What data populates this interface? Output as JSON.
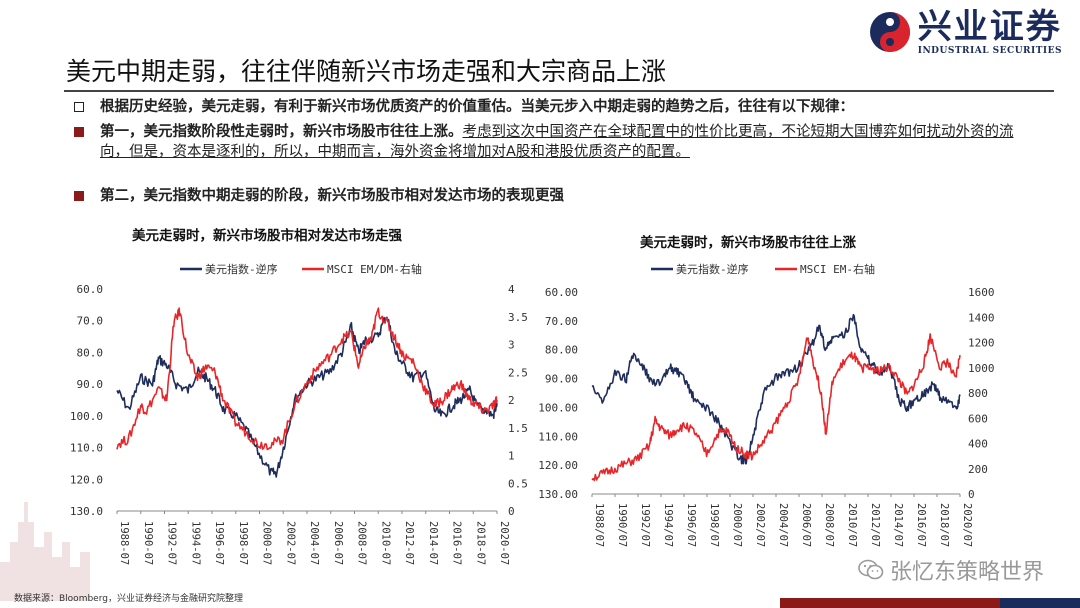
{
  "logo": {
    "cn": "兴业证券",
    "en": "INDUSTRIAL SECURITIES"
  },
  "title": "美元中期走弱，往往伴随新兴市场走强和大宗商品上涨",
  "bullets": [
    {
      "bold": "根据历史经验，美元走弱，有利于新兴市场优质资产的价值重估。当美元步入中期走弱的趋势之后，往往有以下规律：",
      "normal": ""
    },
    {
      "bold": "第一，美元指数阶段性走弱时，新兴市场股市往往上涨。",
      "normal": "考虑到这次中国资产在全球配置中的性价比更高，不论短期大国博弈如何扰动外资的流向，但是，资本是逐利的，所以，中期而言，海外资金将增加对A股和港股优质资产的配置。"
    },
    {
      "bold": "第二，美元指数中期走弱的阶段，新兴市场股市相对发达市场的表现更强",
      "normal": ""
    }
  ],
  "colors": {
    "navy": "#1f2d5c",
    "red": "#e8262a",
    "marker_red": "#8b1a1a"
  },
  "chart_data": [
    {
      "type": "line",
      "title": "美元走弱时，新兴市场股市相对发达市场走强",
      "legend": [
        "美元指数-逆序",
        "MSCI EM/DM-右轴"
      ],
      "left_ticks": [
        "60.0",
        "70.0",
        "80.0",
        "90.0",
        "100.0",
        "110.0",
        "120.0",
        "130.0"
      ],
      "right_ticks": [
        "4",
        "3.5",
        "3",
        "2.5",
        "2",
        "1.5",
        "1",
        "0.5",
        "0"
      ],
      "x_ticks": [
        "1988-07",
        "1990-07",
        "1992-07",
        "1994-07",
        "1996-07",
        "1998-07",
        "2000-07",
        "2002-07",
        "2004-07",
        "2006-07",
        "2008-07",
        "2010-07",
        "2012-07",
        "2014-07",
        "2016-07",
        "2018-07",
        "2020-07"
      ],
      "ylim_left": [
        60,
        130
      ],
      "ylim_right": [
        0,
        4
      ],
      "left_inverted": true,
      "series": [
        {
          "name": "美元指数-逆序",
          "axis": "left",
          "color": "#1f2d5c",
          "x": [
            1988.5,
            1989.5,
            1990.5,
            1991.5,
            1992.0,
            1992.7,
            1993.5,
            1994.5,
            1995.3,
            1996.0,
            1996.8,
            1997.5,
            1998.5,
            1999.5,
            2000.5,
            2001.5,
            2002.0,
            2002.7,
            2003.5,
            2004.5,
            2005.5,
            2006.5,
            2007.5,
            2008.3,
            2008.9,
            2009.5,
            2010.5,
            2011.3,
            2012.0,
            2012.7,
            2013.5,
            2014.5,
            2015.3,
            2016.0,
            2016.8,
            2017.5,
            2018.3,
            2018.9,
            2019.5,
            2020.3,
            2020.6
          ],
          "values": [
            92,
            98,
            88,
            90,
            82,
            84,
            90,
            92,
            86,
            88,
            92,
            98,
            100,
            105,
            112,
            118,
            118,
            108,
            95,
            90,
            88,
            86,
            80,
            72,
            80,
            76,
            75,
            68,
            80,
            84,
            88,
            86,
            98,
            100,
            97,
            95,
            92,
            97,
            98,
            100,
            96
          ]
        },
        {
          "name": "MSCI EM/DM-右轴",
          "axis": "right",
          "color": "#e8262a",
          "x": [
            1988.5,
            1989.5,
            1990.5,
            1991.0,
            1992.0,
            1992.7,
            1993.3,
            1993.8,
            1994.5,
            1995.3,
            1996.0,
            1996.8,
            1997.5,
            1998.5,
            1999.5,
            2000.5,
            2001.5,
            2002.5,
            2003.5,
            2004.5,
            2005.5,
            2006.5,
            2007.5,
            2008.3,
            2008.9,
            2009.5,
            2010.0,
            2010.5,
            2011.3,
            2012.0,
            2012.7,
            2013.5,
            2014.5,
            2015.3,
            2016.0,
            2016.8,
            2017.5,
            2018.3,
            2018.9,
            2019.5,
            2020.3,
            2020.6
          ],
          "values": [
            1.2,
            1.3,
            1.9,
            1.8,
            2.2,
            2.0,
            3.4,
            3.6,
            2.8,
            2.4,
            2.6,
            2.5,
            2.0,
            1.6,
            1.4,
            1.2,
            1.2,
            1.3,
            1.9,
            2.3,
            2.6,
            2.8,
            3.1,
            3.2,
            2.6,
            3.0,
            3.1,
            3.6,
            3.4,
            3.1,
            2.8,
            2.7,
            2.2,
            1.9,
            2.0,
            2.2,
            2.3,
            2.0,
            1.9,
            1.8,
            1.9,
            2.0
          ]
        }
      ]
    },
    {
      "type": "line",
      "title": "美元走弱时，新兴市场股市往往上涨",
      "legend": [
        "美元指数-逆序",
        "MSCI EM-右轴"
      ],
      "left_ticks": [
        "60.00",
        "70.00",
        "80.00",
        "90.00",
        "100.00",
        "110.00",
        "120.00",
        "130.00"
      ],
      "right_ticks": [
        "1600",
        "1400",
        "1200",
        "1000",
        "800",
        "600",
        "400",
        "200",
        "0"
      ],
      "x_ticks": [
        "1988/07",
        "1990/07",
        "1992/07",
        "1994/07",
        "1996/07",
        "1998/07",
        "2000/07",
        "2002/07",
        "2004/07",
        "2006/07",
        "2008/07",
        "2010/07",
        "2012/07",
        "2014/07",
        "2016/07",
        "2018/07",
        "2020/07"
      ],
      "ylim_left": [
        60,
        130
      ],
      "ylim_right": [
        0,
        1600
      ],
      "left_inverted": true,
      "series": [
        {
          "name": "美元指数-逆序",
          "axis": "left",
          "color": "#1f2d5c",
          "x": [
            1988.5,
            1989.5,
            1990.5,
            1991.5,
            1992.0,
            1992.7,
            1993.5,
            1994.5,
            1995.3,
            1996.0,
            1996.8,
            1997.5,
            1998.5,
            1999.5,
            2000.5,
            2001.5,
            2002.0,
            2002.7,
            2003.5,
            2004.5,
            2005.5,
            2006.5,
            2007.5,
            2008.3,
            2008.9,
            2009.5,
            2010.5,
            2011.3,
            2012.0,
            2012.7,
            2013.5,
            2014.5,
            2015.3,
            2016.0,
            2016.8,
            2017.5,
            2018.3,
            2018.9,
            2019.5,
            2020.3,
            2020.6
          ],
          "values": [
            92,
            98,
            88,
            90,
            82,
            84,
            90,
            92,
            86,
            88,
            92,
            98,
            100,
            105,
            112,
            118,
            118,
            108,
            95,
            90,
            88,
            86,
            80,
            72,
            80,
            76,
            75,
            68,
            80,
            84,
            88,
            86,
            98,
            100,
            97,
            95,
            92,
            97,
            98,
            100,
            96
          ]
        },
        {
          "name": "MSCI EM-右轴",
          "axis": "right",
          "color": "#e8262a",
          "x": [
            1988.5,
            1989.5,
            1990.5,
            1991.5,
            1992.5,
            1993.5,
            1994.0,
            1994.5,
            1995.3,
            1996.0,
            1996.8,
            1997.5,
            1998.5,
            1999.5,
            2000.3,
            2001.0,
            2001.8,
            2002.5,
            2003.5,
            2004.5,
            2005.5,
            2006.5,
            2007.3,
            2007.8,
            2008.5,
            2008.9,
            2009.5,
            2010.5,
            2011.3,
            2011.9,
            2012.7,
            2013.5,
            2014.5,
            2015.3,
            2016.0,
            2016.8,
            2017.5,
            2018.0,
            2018.9,
            2019.5,
            2020.2,
            2020.6
          ],
          "values": [
            130,
            160,
            200,
            240,
            280,
            380,
            580,
            520,
            460,
            520,
            540,
            480,
            320,
            480,
            500,
            380,
            320,
            300,
            420,
            560,
            720,
            900,
            1250,
            1050,
            800,
            480,
            900,
            1050,
            1100,
            1000,
            1000,
            980,
            1000,
            900,
            780,
            900,
            1050,
            1250,
            1000,
            1050,
            900,
            1100
          ]
        }
      ]
    }
  ],
  "watermark": "张忆东策略世界",
  "footer": "数据来源：Bloomberg，兴业证券经济与金融研究院整理"
}
